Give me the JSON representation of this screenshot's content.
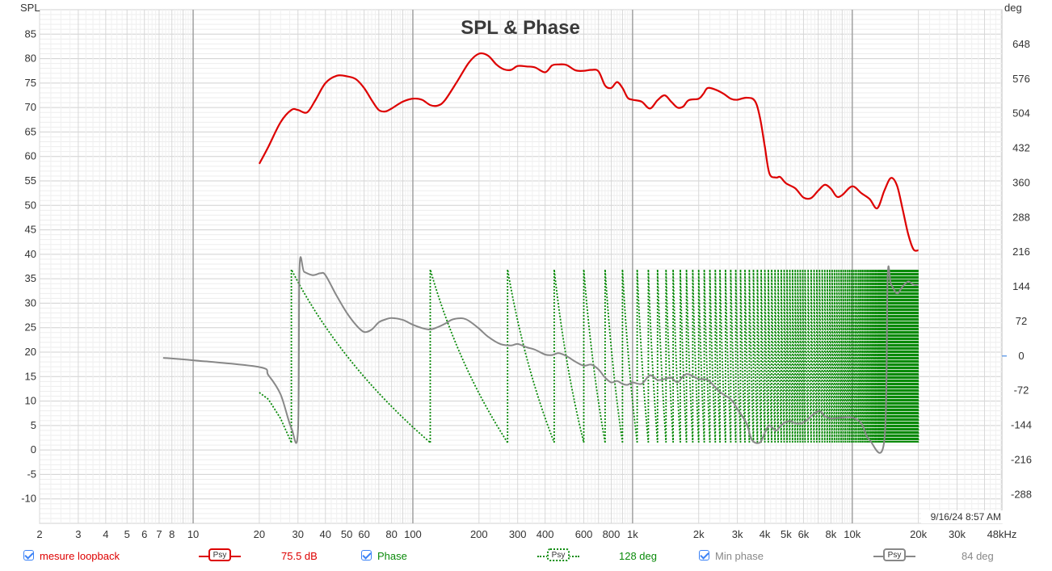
{
  "chart_data": {
    "type": "line",
    "title": "SPL & Phase",
    "left_axis_label": "SPL",
    "right_axis_label": "deg",
    "x_scale": "log",
    "x_range_hz": [
      2,
      48000
    ],
    "y_left_range": [
      -15,
      90
    ],
    "y_right_range": [
      -348,
      720
    ],
    "x_ticks": [
      {
        "v": 2,
        "label": "2"
      },
      {
        "v": 3,
        "label": "3"
      },
      {
        "v": 4,
        "label": "4"
      },
      {
        "v": 5,
        "label": "5"
      },
      {
        "v": 6,
        "label": "6"
      },
      {
        "v": 7,
        "label": "7"
      },
      {
        "v": 8,
        "label": "8"
      },
      {
        "v": 10,
        "label": "10"
      },
      {
        "v": 20,
        "label": "20"
      },
      {
        "v": 30,
        "label": "30"
      },
      {
        "v": 40,
        "label": "40"
      },
      {
        "v": 50,
        "label": "50"
      },
      {
        "v": 60,
        "label": "60"
      },
      {
        "v": 80,
        "label": "80"
      },
      {
        "v": 100,
        "label": "100"
      },
      {
        "v": 200,
        "label": "200"
      },
      {
        "v": 300,
        "label": "300"
      },
      {
        "v": 400,
        "label": "400"
      },
      {
        "v": 600,
        "label": "600"
      },
      {
        "v": 800,
        "label": "800"
      },
      {
        "v": 1000,
        "label": "1k"
      },
      {
        "v": 2000,
        "label": "2k"
      },
      {
        "v": 3000,
        "label": "3k"
      },
      {
        "v": 4000,
        "label": "4k"
      },
      {
        "v": 5000,
        "label": "5k"
      },
      {
        "v": 6000,
        "label": "6k"
      },
      {
        "v": 8000,
        "label": "8k"
      },
      {
        "v": 10000,
        "label": "10k"
      },
      {
        "v": 20000,
        "label": "20k"
      },
      {
        "v": 30000,
        "label": "30k"
      },
      {
        "v": 48000,
        "label": "48kHz"
      }
    ],
    "y_left_ticks": [
      85,
      80,
      75,
      70,
      65,
      60,
      55,
      50,
      45,
      40,
      35,
      30,
      25,
      20,
      15,
      10,
      5,
      0,
      -5,
      -10
    ],
    "y_right_ticks": [
      648,
      576,
      504,
      432,
      360,
      288,
      216,
      144,
      72,
      0,
      -72,
      -144,
      -216,
      -288
    ],
    "series": [
      {
        "name": "mesure loopback",
        "axis": "left",
        "color": "#dd0000",
        "points": [
          [
            20,
            58.5
          ],
          [
            22,
            62
          ],
          [
            25,
            67
          ],
          [
            28,
            69.5
          ],
          [
            30,
            69.5
          ],
          [
            33,
            69
          ],
          [
            36,
            71.5
          ],
          [
            40,
            75
          ],
          [
            45,
            76.5
          ],
          [
            50,
            76.4
          ],
          [
            55,
            75.8
          ],
          [
            60,
            74
          ],
          [
            65,
            71.5
          ],
          [
            70,
            69.5
          ],
          [
            75,
            69.2
          ],
          [
            80,
            69.8
          ],
          [
            90,
            71.2
          ],
          [
            100,
            71.8
          ],
          [
            110,
            71.6
          ],
          [
            120,
            70.5
          ],
          [
            130,
            70.4
          ],
          [
            140,
            71.5
          ],
          [
            160,
            75.5
          ],
          [
            180,
            79.2
          ],
          [
            200,
            81
          ],
          [
            220,
            80.6
          ],
          [
            240,
            78.8
          ],
          [
            260,
            77.8
          ],
          [
            280,
            77.7
          ],
          [
            300,
            78.5
          ],
          [
            330,
            78.4
          ],
          [
            360,
            78.2
          ],
          [
            400,
            77.2
          ],
          [
            430,
            78.6
          ],
          [
            460,
            78.8
          ],
          [
            500,
            78.7
          ],
          [
            550,
            77.6
          ],
          [
            600,
            77.5
          ],
          [
            650,
            77.7
          ],
          [
            700,
            77.4
          ],
          [
            750,
            74.5
          ],
          [
            800,
            74
          ],
          [
            850,
            75.2
          ],
          [
            900,
            74
          ],
          [
            950,
            72
          ],
          [
            1000,
            71.6
          ],
          [
            1100,
            71.2
          ],
          [
            1200,
            69.8
          ],
          [
            1300,
            71.5
          ],
          [
            1400,
            72.5
          ],
          [
            1500,
            71.2
          ],
          [
            1600,
            70
          ],
          [
            1700,
            70.2
          ],
          [
            1800,
            71.5
          ],
          [
            2000,
            71.8
          ],
          [
            2100,
            72.8
          ],
          [
            2200,
            74
          ],
          [
            2400,
            73.6
          ],
          [
            2600,
            72.8
          ],
          [
            2800,
            71.8
          ],
          [
            3000,
            71.6
          ],
          [
            3300,
            72
          ],
          [
            3600,
            71.4
          ],
          [
            3800,
            68
          ],
          [
            4000,
            62
          ],
          [
            4200,
            56.5
          ],
          [
            4500,
            55.7
          ],
          [
            4700,
            55.8
          ],
          [
            5000,
            54.5
          ],
          [
            5500,
            53.5
          ],
          [
            6000,
            51.6
          ],
          [
            6500,
            51.5
          ],
          [
            7000,
            53
          ],
          [
            7500,
            54.2
          ],
          [
            8000,
            53.4
          ],
          [
            8500,
            51.8
          ],
          [
            9000,
            52.1
          ],
          [
            10000,
            53.9
          ],
          [
            11000,
            52.5
          ],
          [
            12000,
            51.3
          ],
          [
            13000,
            49.4
          ],
          [
            14000,
            53
          ],
          [
            15000,
            55.6
          ],
          [
            16000,
            54
          ],
          [
            17000,
            49
          ],
          [
            18000,
            44
          ],
          [
            19000,
            41
          ],
          [
            20000,
            40.8
          ]
        ]
      },
      {
        "name": "Min phase",
        "axis": "right",
        "color": "#888888",
        "points": [
          [
            7.3,
            -4
          ],
          [
            10,
            -9
          ],
          [
            20,
            -23
          ],
          [
            22,
            -40
          ],
          [
            25,
            -80
          ],
          [
            28,
            -150
          ],
          [
            30,
            -155
          ],
          [
            30.5,
            183
          ],
          [
            32,
            175
          ],
          [
            35,
            168
          ],
          [
            38,
            172
          ],
          [
            40,
            168
          ],
          [
            45,
            125
          ],
          [
            50,
            90
          ],
          [
            55,
            65
          ],
          [
            60,
            50
          ],
          [
            65,
            55
          ],
          [
            70,
            70
          ],
          [
            75,
            76
          ],
          [
            80,
            79
          ],
          [
            90,
            75
          ],
          [
            100,
            65
          ],
          [
            110,
            58
          ],
          [
            120,
            55
          ],
          [
            130,
            60
          ],
          [
            140,
            67
          ],
          [
            150,
            75
          ],
          [
            160,
            78
          ],
          [
            170,
            78
          ],
          [
            180,
            73
          ],
          [
            200,
            57
          ],
          [
            220,
            40
          ],
          [
            250,
            25
          ],
          [
            280,
            22
          ],
          [
            300,
            25
          ],
          [
            330,
            18
          ],
          [
            360,
            13
          ],
          [
            400,
            3
          ],
          [
            430,
            2
          ],
          [
            460,
            6
          ],
          [
            500,
            0
          ],
          [
            550,
            -12
          ],
          [
            600,
            -20
          ],
          [
            650,
            -18
          ],
          [
            700,
            -28
          ],
          [
            750,
            -45
          ],
          [
            800,
            -55
          ],
          [
            850,
            -52
          ],
          [
            900,
            -58
          ],
          [
            950,
            -60
          ],
          [
            1000,
            -55
          ],
          [
            1100,
            -58
          ],
          [
            1200,
            -40
          ],
          [
            1300,
            -50
          ],
          [
            1400,
            -48
          ],
          [
            1500,
            -45
          ],
          [
            1600,
            -55
          ],
          [
            1700,
            -42
          ],
          [
            1800,
            -38
          ],
          [
            2000,
            -48
          ],
          [
            2200,
            -50
          ],
          [
            2500,
            -75
          ],
          [
            2800,
            -90
          ],
          [
            3000,
            -110
          ],
          [
            3300,
            -140
          ],
          [
            3500,
            -175
          ],
          [
            3800,
            -180
          ],
          [
            4000,
            -160
          ],
          [
            4200,
            -145
          ],
          [
            4500,
            -155
          ],
          [
            4800,
            -142
          ],
          [
            5200,
            -135
          ],
          [
            5500,
            -140
          ],
          [
            6000,
            -138
          ],
          [
            7000,
            -115
          ],
          [
            7500,
            -125
          ],
          [
            8000,
            -130
          ],
          [
            9000,
            -128
          ],
          [
            10000,
            -128
          ],
          [
            11000,
            -140
          ],
          [
            12000,
            -175
          ],
          [
            14000,
            -175
          ],
          [
            14500,
            165
          ],
          [
            15000,
            150
          ],
          [
            16000,
            130
          ],
          [
            17000,
            145
          ],
          [
            18000,
            155
          ],
          [
            19000,
            148
          ],
          [
            20000,
            148
          ]
        ]
      }
    ],
    "phase_series": {
      "name": "Phase",
      "axis": "right",
      "color": "#0a8a0a",
      "range_deg": [
        -180,
        180
      ],
      "first_wrap_segment": [
        [
          20,
          -76
        ],
        [
          22,
          -90
        ],
        [
          25,
          -130
        ],
        [
          28,
          -180
        ]
      ],
      "wrap_frequencies_hz": [
        28,
        120,
        270,
        440,
        600,
        750,
        900,
        1050,
        1180,
        1300,
        1420,
        1530,
        1650,
        1760,
        1880,
        2000,
        2120,
        2250,
        2380,
        2500,
        2650,
        2800,
        2950,
        3100,
        3250,
        3400,
        3550,
        3700,
        3850,
        4000,
        4150,
        4300,
        4450,
        4600,
        4750,
        4900,
        5050,
        5200,
        5350,
        5500,
        5650,
        5800,
        5950,
        6100,
        6300,
        6500,
        6700,
        6900,
        7100,
        7300,
        7500,
        7700,
        7900,
        8100,
        8300,
        8500,
        8700,
        8900,
        9100,
        9300,
        9500,
        9700,
        9900,
        10100,
        10300,
        10500,
        10700,
        10900,
        11100,
        11300,
        11500,
        11700,
        11900,
        12100,
        12300,
        12500,
        12700,
        12900,
        13100,
        13300,
        13500,
        13700,
        13900,
        14100,
        14300,
        14500,
        14700,
        14900,
        15100,
        15300,
        15500,
        15700,
        15900,
        16100,
        16300,
        16500,
        16700,
        16900,
        17100,
        17300,
        17500,
        17700,
        17900,
        18100,
        18300,
        18500,
        18700,
        18900,
        19100,
        19300,
        19500,
        19700,
        19900,
        20000
      ]
    },
    "timestamp": "9/16/24 8:57 AM",
    "grid": true
  },
  "legend": [
    {
      "label": "mesure loopback",
      "value": "75.5 dB",
      "color": "#dd0000",
      "psy": "Psy",
      "line": "solid"
    },
    {
      "label": "Phase",
      "value": "128 deg",
      "color": "#0a8a0a",
      "psy": "Psy",
      "line": "dotted"
    },
    {
      "label": "Min phase",
      "value": "84 deg",
      "color": "#888888",
      "psy": "Psy",
      "line": "solid"
    }
  ]
}
